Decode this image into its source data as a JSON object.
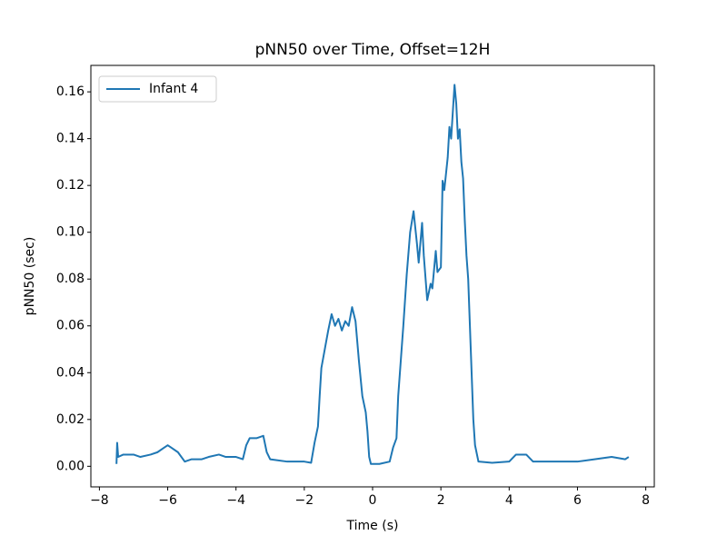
{
  "chart_data": {
    "type": "line",
    "title": "pNN50 over Time, Offset=12H",
    "x_label": "Time (s)",
    "y_label": "pNN50 (sec)",
    "x": [
      -7.5,
      -7.48,
      -7.45,
      -7.3,
      -7.0,
      -6.8,
      -6.5,
      -6.3,
      -6.1,
      -6.0,
      -5.9,
      -5.7,
      -5.5,
      -5.3,
      -5.0,
      -4.8,
      -4.5,
      -4.3,
      -4.0,
      -3.8,
      -3.7,
      -3.6,
      -3.4,
      -3.2,
      -3.1,
      -3.0,
      -2.5,
      -2.0,
      -1.8,
      -1.7,
      -1.6,
      -1.55,
      -1.5,
      -1.4,
      -1.3,
      -1.2,
      -1.1,
      -1.0,
      -0.9,
      -0.8,
      -0.7,
      -0.6,
      -0.5,
      -0.4,
      -0.3,
      -0.2,
      -0.15,
      -0.1,
      -0.05,
      0.0,
      0.2,
      0.5,
      0.6,
      0.7,
      0.75,
      0.8,
      0.9,
      1.0,
      1.1,
      1.2,
      1.3,
      1.35,
      1.45,
      1.5,
      1.6,
      1.7,
      1.75,
      1.85,
      1.9,
      2.0,
      2.05,
      2.1,
      2.2,
      2.25,
      2.3,
      2.4,
      2.45,
      2.5,
      2.55,
      2.6,
      2.65,
      2.7,
      2.75,
      2.8,
      2.85,
      2.9,
      2.95,
      3.0,
      3.1,
      3.5,
      4.0,
      4.2,
      4.5,
      4.7,
      5.0,
      5.5,
      6.0,
      6.5,
      7.0,
      7.4,
      7.5
    ],
    "series": [
      {
        "name": "Infant 4",
        "color": "#1f77b4",
        "values": [
          0.001,
          0.01,
          0.004,
          0.005,
          0.005,
          0.004,
          0.005,
          0.006,
          0.008,
          0.009,
          0.008,
          0.006,
          0.002,
          0.003,
          0.003,
          0.004,
          0.005,
          0.004,
          0.004,
          0.003,
          0.009,
          0.012,
          0.012,
          0.013,
          0.006,
          0.003,
          0.002,
          0.002,
          0.0015,
          0.01,
          0.017,
          0.03,
          0.042,
          0.05,
          0.058,
          0.065,
          0.06,
          0.063,
          0.058,
          0.062,
          0.06,
          0.068,
          0.062,
          0.045,
          0.03,
          0.023,
          0.015,
          0.004,
          0.001,
          0.001,
          0.001,
          0.002,
          0.008,
          0.012,
          0.03,
          0.04,
          0.06,
          0.082,
          0.1,
          0.109,
          0.095,
          0.087,
          0.104,
          0.09,
          0.071,
          0.078,
          0.076,
          0.092,
          0.083,
          0.085,
          0.122,
          0.118,
          0.132,
          0.145,
          0.14,
          0.163,
          0.155,
          0.14,
          0.144,
          0.13,
          0.123,
          0.105,
          0.09,
          0.08,
          0.06,
          0.04,
          0.02,
          0.009,
          0.002,
          0.0015,
          0.002,
          0.005,
          0.005,
          0.002,
          0.002,
          0.002,
          0.002,
          0.003,
          0.004,
          0.003,
          0.004
        ]
      }
    ],
    "xlim": [
      -8.25,
      8.25
    ],
    "xticks": [
      {
        "value": -8,
        "label": "−8"
      },
      {
        "value": -6,
        "label": "−6"
      },
      {
        "value": -4,
        "label": "−4"
      },
      {
        "value": -2,
        "label": "−2"
      },
      0,
      2,
      4,
      6,
      8
    ],
    "ylim": [
      -0.0088,
      0.1713
    ],
    "yticks": [
      {
        "value": 0,
        "label": "0.00"
      },
      {
        "value": 0.02,
        "label": "0.02"
      },
      {
        "value": 0.04,
        "label": "0.04"
      },
      {
        "value": 0.06,
        "label": "0.06"
      },
      {
        "value": 0.08,
        "label": "0.08"
      },
      {
        "value": 0.1,
        "label": "0.10"
      },
      {
        "value": 0.12,
        "label": "0.12"
      },
      {
        "value": 0.14,
        "label": "0.14"
      },
      {
        "value": 0.16,
        "label": "0.16"
      }
    ],
    "grid": false,
    "legend": "upper left"
  }
}
